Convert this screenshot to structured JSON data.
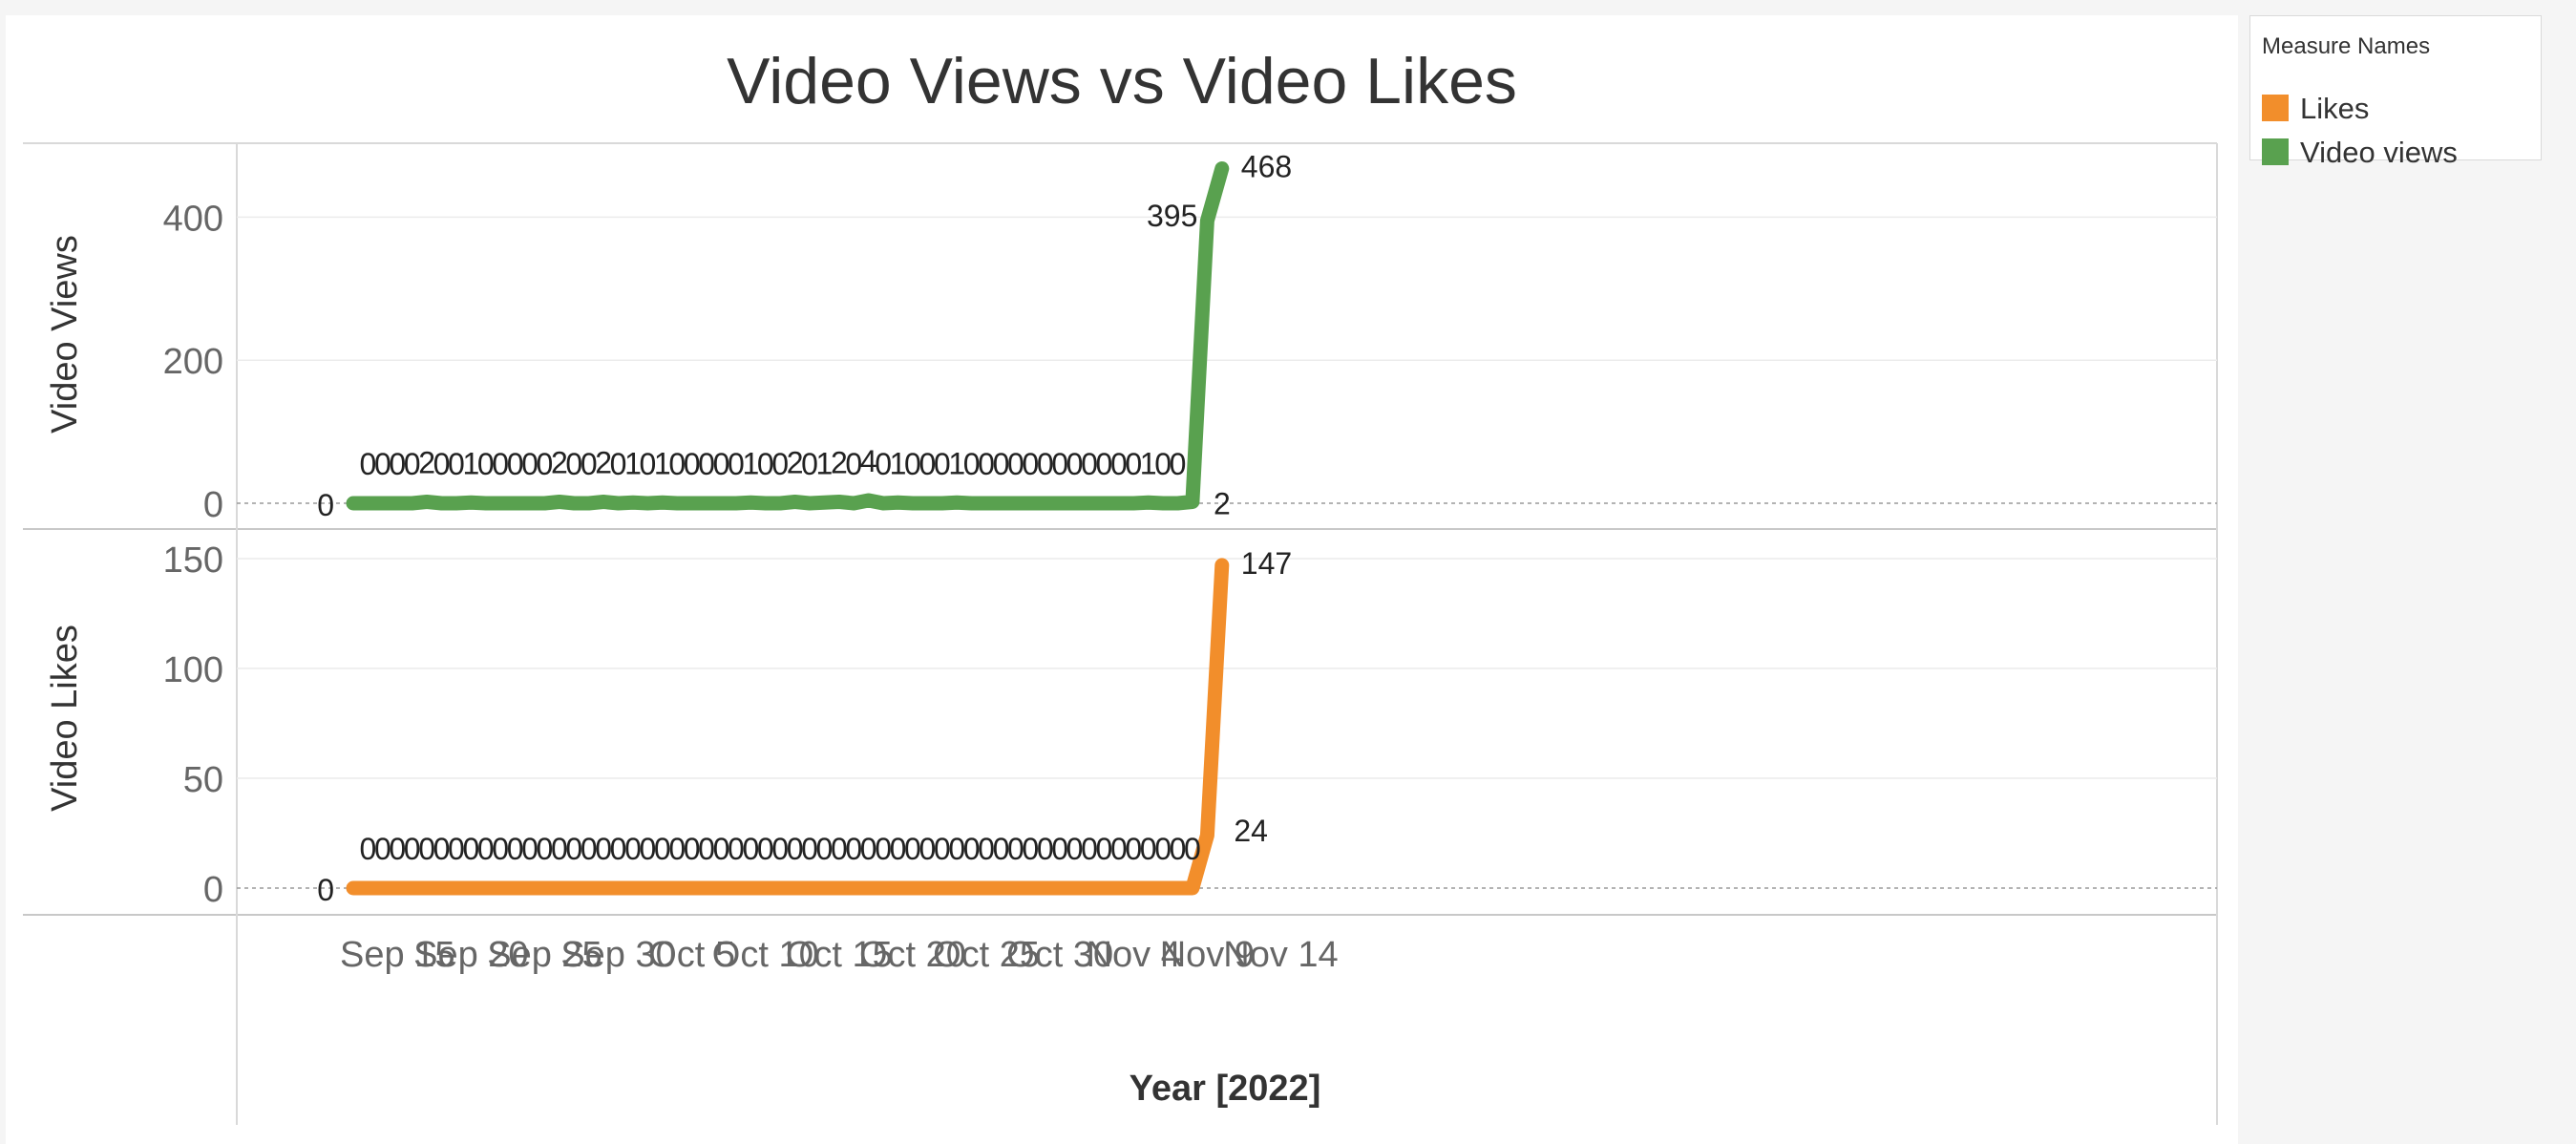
{
  "colors": {
    "likes": "#f28e2b",
    "views": "#59a14f"
  },
  "legend": {
    "title": "Measure Names",
    "items": [
      {
        "label": "Likes",
        "color": "#f28e2b"
      },
      {
        "label": "Video views",
        "color": "#59a14f"
      }
    ]
  },
  "chart_data": {
    "type": "line",
    "title": "Video Views vs Video Likes",
    "xlabel": "Year [2022]",
    "x_start": "2022-09-12",
    "x_ticks": [
      "Sep 15",
      "Sep 20",
      "Sep 25",
      "Sep 30",
      "Oct 5",
      "Oct 10",
      "Oct 15",
      "Oct 20",
      "Oct 25",
      "Oct 30",
      "Nov 4",
      "Nov 9",
      "Nov 14"
    ],
    "x_tick_dates": [
      "2022-09-15",
      "2022-09-20",
      "2022-09-25",
      "2022-09-30",
      "2022-10-05",
      "2022-10-10",
      "2022-10-15",
      "2022-10-20",
      "2022-10-25",
      "2022-10-30",
      "2022-11-04",
      "2022-11-09",
      "2022-11-14"
    ],
    "panels": [
      {
        "name": "views",
        "ylabel": "Video Views",
        "ylim": [
          0,
          500
        ],
        "yticks": [
          0,
          200,
          400
        ],
        "series_name": "Video views",
        "color": "#59a14f",
        "values": [
          0,
          0,
          0,
          0,
          0,
          2,
          0,
          0,
          1,
          0,
          0,
          0,
          0,
          0,
          2,
          0,
          0,
          2,
          0,
          1,
          0,
          1,
          0,
          0,
          0,
          0,
          0,
          1,
          0,
          0,
          2,
          0,
          1,
          2,
          0,
          4,
          0,
          1,
          0,
          0,
          0,
          1,
          0,
          0,
          0,
          0,
          0,
          0,
          0,
          0,
          0,
          0,
          0,
          0,
          1,
          0,
          0,
          2,
          395,
          468
        ]
      },
      {
        "name": "likes",
        "ylabel": "Video Likes",
        "ylim": [
          0,
          150
        ],
        "yticks": [
          0,
          50,
          100,
          150
        ],
        "series_name": "Likes",
        "color": "#f28e2b",
        "values": [
          0,
          0,
          0,
          0,
          0,
          0,
          0,
          0,
          0,
          0,
          0,
          0,
          0,
          0,
          0,
          0,
          0,
          0,
          0,
          0,
          0,
          0,
          0,
          0,
          0,
          0,
          0,
          0,
          0,
          0,
          0,
          0,
          0,
          0,
          0,
          0,
          0,
          0,
          0,
          0,
          0,
          0,
          0,
          0,
          0,
          0,
          0,
          0,
          0,
          0,
          0,
          0,
          0,
          0,
          0,
          0,
          0,
          0,
          24,
          147
        ]
      }
    ]
  }
}
